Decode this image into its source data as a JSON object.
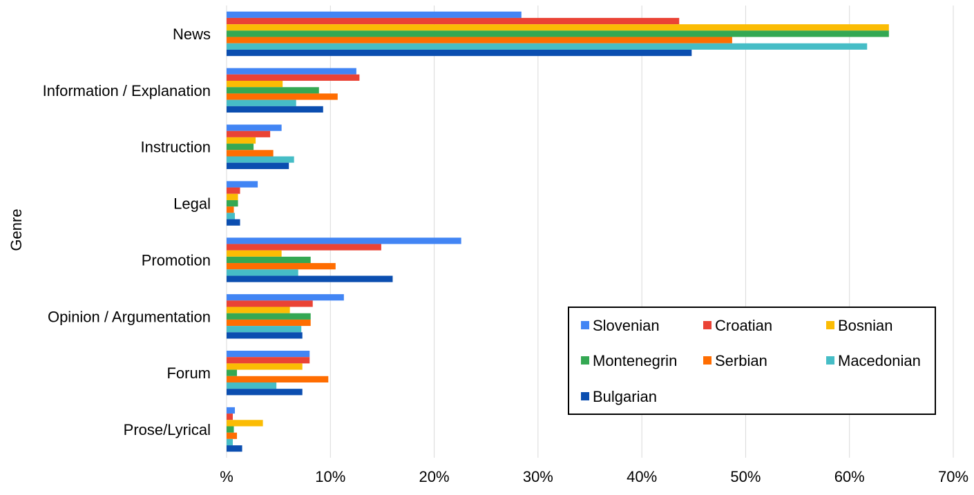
{
  "chart_data": {
    "type": "bar",
    "orientation": "horizontal",
    "ylabel": "Genre",
    "xlabel": "",
    "x_tick_labels": [
      "%",
      "10%",
      "20%",
      "30%",
      "40%",
      "50%",
      "60%",
      "70%"
    ],
    "xlim": [
      0,
      70
    ],
    "grid": "vertical",
    "legend_position": "bottom-right",
    "categories": [
      "News",
      "Information / Explanation",
      "Instruction",
      "Legal",
      "Promotion",
      "Opinion / Argumentation",
      "Forum",
      "Prose/Lyrical"
    ],
    "series": [
      {
        "name": "Slovenian",
        "color": "#4285f4",
        "values": [
          28.4,
          12.5,
          5.3,
          3.0,
          22.6,
          11.3,
          8.0,
          0.8
        ]
      },
      {
        "name": "Croatian",
        "color": "#ea4335",
        "values": [
          43.6,
          12.8,
          4.2,
          1.3,
          14.9,
          8.3,
          8.0,
          0.6
        ]
      },
      {
        "name": "Bosnian",
        "color": "#fbbc04",
        "values": [
          63.8,
          5.4,
          2.8,
          1.1,
          5.3,
          6.1,
          7.3,
          3.5
        ]
      },
      {
        "name": "Montenegrin",
        "color": "#34a853",
        "values": [
          63.8,
          8.9,
          2.6,
          1.1,
          8.1,
          8.1,
          1.0,
          0.7
        ]
      },
      {
        "name": "Serbian",
        "color": "#ff6d01",
        "values": [
          48.7,
          10.7,
          4.5,
          0.7,
          10.5,
          8.1,
          9.8,
          1.0
        ]
      },
      {
        "name": "Macedonian",
        "color": "#46bdc6",
        "values": [
          61.7,
          6.7,
          6.5,
          0.8,
          6.9,
          7.2,
          4.8,
          0.6
        ]
      },
      {
        "name": "Bulgarian",
        "color": "#0b4eb0",
        "values": [
          44.8,
          9.3,
          6.0,
          1.3,
          16.0,
          7.3,
          7.3,
          1.5
        ]
      }
    ]
  }
}
